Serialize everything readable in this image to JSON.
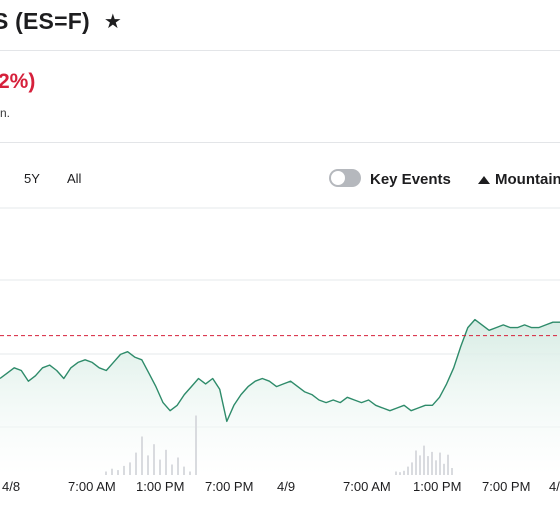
{
  "header": {
    "title": "S (ES=F)",
    "star_icon": "star-icon"
  },
  "quote": {
    "change_text": "2%)",
    "note_text": "n."
  },
  "range_buttons": [
    {
      "label": "5Y"
    },
    {
      "label": "All"
    }
  ],
  "key_events": {
    "label": "Key Events",
    "enabled": false
  },
  "chart_type_selector": {
    "label": "Mountain",
    "icon": "mountain-icon"
  },
  "colors": {
    "line": "#2e8b6a",
    "fill": "#d7ece4",
    "reference": "#d6203b",
    "gridline": "#e6e8eb",
    "volume": "#d9dbdf"
  },
  "chart_data": {
    "type": "area",
    "x_tick_labels": [
      "4/8",
      "7:00 AM",
      "1:00 PM",
      "7:00 PM",
      "4/9",
      "7:00 AM",
      "1:00 PM",
      "7:00 PM",
      "4/"
    ],
    "series": [
      {
        "values": [
          0.36,
          0.38,
          0.4,
          0.39,
          0.35,
          0.37,
          0.4,
          0.41,
          0.39,
          0.36,
          0.4,
          0.42,
          0.43,
          0.42,
          0.4,
          0.39,
          0.42,
          0.45,
          0.46,
          0.44,
          0.43,
          0.38,
          0.33,
          0.27,
          0.24,
          0.26,
          0.3,
          0.33,
          0.36,
          0.34,
          0.36,
          0.32,
          0.2,
          0.26,
          0.3,
          0.33,
          0.35,
          0.36,
          0.35,
          0.33,
          0.34,
          0.35,
          0.33,
          0.31,
          0.3,
          0.28,
          0.27,
          0.28,
          0.27,
          0.29,
          0.28,
          0.27,
          0.28,
          0.26,
          0.25,
          0.24,
          0.25,
          0.26,
          0.24,
          0.25,
          0.26,
          0.26,
          0.29,
          0.34,
          0.4,
          0.48,
          0.55,
          0.58,
          0.56,
          0.54,
          0.55,
          0.56,
          0.55,
          0.55,
          0.56,
          0.55,
          0.55,
          0.56,
          0.57,
          0.57
        ]
      }
    ],
    "reference_line_fraction": 0.52,
    "volume": [
      0.05,
      0.09,
      0.07,
      0.13,
      0.18,
      0.32,
      0.55,
      0.28,
      0.44,
      0.22,
      0.36,
      0.15,
      0.25,
      0.12,
      0.05,
      0.85,
      0.05,
      0.04,
      0.06,
      0.12,
      0.18,
      0.35,
      0.28,
      0.42,
      0.27,
      0.33,
      0.21,
      0.32,
      0.16,
      0.29,
      0.1
    ]
  }
}
